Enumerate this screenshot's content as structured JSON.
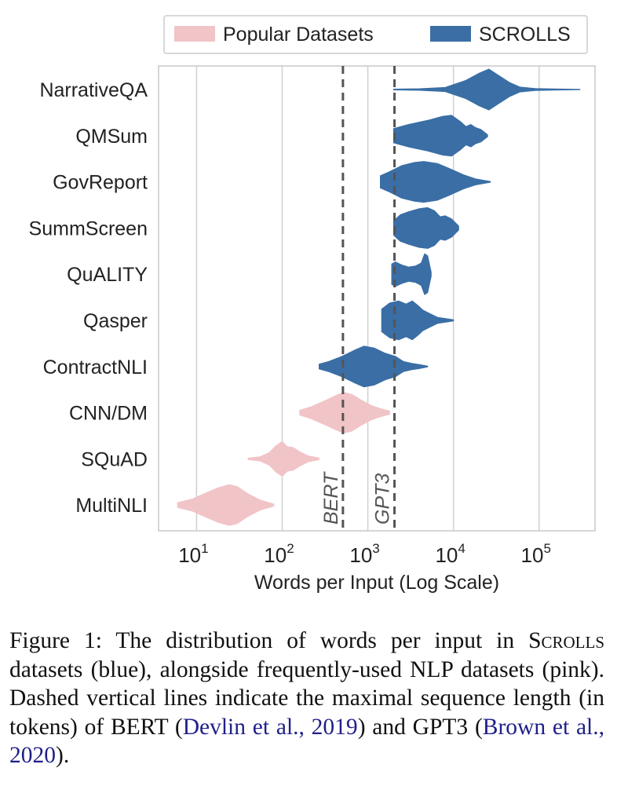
{
  "chart_data": {
    "type": "violin",
    "title": "",
    "xlabel": "Words per Input (Log Scale)",
    "ylabel": "",
    "x_scale": "log",
    "xlim": [
      3.6,
      450000
    ],
    "x_ticks": [
      {
        "value": 10,
        "base": "10",
        "exp": "1"
      },
      {
        "value": 100,
        "base": "10",
        "exp": "2"
      },
      {
        "value": 1000,
        "base": "10",
        "exp": "3"
      },
      {
        "value": 10000,
        "base": "10",
        "exp": "4"
      },
      {
        "value": 100000,
        "base": "10",
        "exp": "5"
      }
    ],
    "grid": "vertical",
    "legend_position": "top",
    "legend": [
      {
        "label": "Popular Datasets",
        "color": "#f1c4c7"
      },
      {
        "label": "SCROLLS",
        "color": "#3a6ea5"
      }
    ],
    "reference_lines": [
      {
        "label": "BERT",
        "x": 512
      },
      {
        "label": "GPT3",
        "x": 2048
      }
    ],
    "series": [
      {
        "name": "NarrativeQA",
        "group": "SCROLLS",
        "color": "#3a6ea5",
        "min": 2000,
        "max": 300000,
        "profile": [
          [
            2000,
            0.02
          ],
          [
            4000,
            0.04
          ],
          [
            8000,
            0.1
          ],
          [
            14000,
            0.45
          ],
          [
            20000,
            0.8
          ],
          [
            26000,
            1.0
          ],
          [
            32000,
            0.75
          ],
          [
            45000,
            0.35
          ],
          [
            60000,
            0.12
          ],
          [
            90000,
            0.05
          ],
          [
            150000,
            0.03
          ],
          [
            300000,
            0.01
          ]
        ]
      },
      {
        "name": "QMSum",
        "group": "SCROLLS",
        "color": "#3a6ea5",
        "min": 2000,
        "max": 25000,
        "profile": [
          [
            2000,
            0.35
          ],
          [
            3000,
            0.55
          ],
          [
            5000,
            0.75
          ],
          [
            7500,
            0.95
          ],
          [
            9500,
            1.0
          ],
          [
            12000,
            0.7
          ],
          [
            14000,
            0.45
          ],
          [
            16000,
            0.55
          ],
          [
            18000,
            0.4
          ],
          [
            21000,
            0.3
          ],
          [
            25000,
            0.05
          ]
        ]
      },
      {
        "name": "GovReport",
        "group": "SCROLLS",
        "color": "#3a6ea5",
        "min": 1400,
        "max": 27000,
        "profile": [
          [
            1400,
            0.3
          ],
          [
            1800,
            0.5
          ],
          [
            2500,
            0.8
          ],
          [
            3500,
            0.95
          ],
          [
            4500,
            1.0
          ],
          [
            6500,
            0.9
          ],
          [
            9000,
            0.65
          ],
          [
            13000,
            0.35
          ],
          [
            18000,
            0.15
          ],
          [
            27000,
            0.02
          ]
        ]
      },
      {
        "name": "SummScreen",
        "group": "SCROLLS",
        "color": "#3a6ea5",
        "min": 2000,
        "max": 11500,
        "profile": [
          [
            2000,
            0.35
          ],
          [
            2400,
            0.65
          ],
          [
            3000,
            0.8
          ],
          [
            4000,
            0.95
          ],
          [
            5000,
            1.0
          ],
          [
            6000,
            0.85
          ],
          [
            7000,
            0.55
          ],
          [
            8000,
            0.6
          ],
          [
            9500,
            0.45
          ],
          [
            11500,
            0.1
          ]
        ]
      },
      {
        "name": "QuALITY",
        "group": "SCROLLS",
        "color": "#3a6ea5",
        "min": 1900,
        "max": 5500,
        "profile": [
          [
            1900,
            0.5
          ],
          [
            2100,
            0.6
          ],
          [
            2500,
            0.45
          ],
          [
            3000,
            0.35
          ],
          [
            3600,
            0.4
          ],
          [
            4200,
            0.55
          ],
          [
            4600,
            1.0
          ],
          [
            5000,
            0.9
          ],
          [
            5500,
            0.1
          ]
        ]
      },
      {
        "name": "Qasper",
        "group": "SCROLLS",
        "color": "#3a6ea5",
        "min": 1450,
        "max": 10000,
        "profile": [
          [
            1450,
            0.55
          ],
          [
            1800,
            0.85
          ],
          [
            2300,
            0.95
          ],
          [
            2800,
            0.8
          ],
          [
            3300,
            0.95
          ],
          [
            3800,
            0.75
          ],
          [
            4400,
            0.5
          ],
          [
            5200,
            0.35
          ],
          [
            6500,
            0.15
          ],
          [
            10000,
            0.03
          ]
        ]
      },
      {
        "name": "ContractNLI",
        "group": "SCROLLS",
        "color": "#3a6ea5",
        "min": 270,
        "max": 5000,
        "profile": [
          [
            270,
            0.12
          ],
          [
            350,
            0.25
          ],
          [
            500,
            0.5
          ],
          [
            700,
            0.8
          ],
          [
            900,
            1.0
          ],
          [
            1200,
            0.9
          ],
          [
            1600,
            0.65
          ],
          [
            2100,
            0.5
          ],
          [
            2600,
            0.25
          ],
          [
            3300,
            0.15
          ],
          [
            4000,
            0.1
          ],
          [
            5000,
            0.02
          ]
        ]
      },
      {
        "name": "CNN/DM",
        "group": "Popular Datasets",
        "color": "#f1c4c7",
        "min": 160,
        "max": 1800,
        "profile": [
          [
            160,
            0.12
          ],
          [
            220,
            0.3
          ],
          [
            320,
            0.6
          ],
          [
            430,
            0.85
          ],
          [
            520,
            1.0
          ],
          [
            650,
            0.9
          ],
          [
            850,
            0.6
          ],
          [
            1100,
            0.35
          ],
          [
            1400,
            0.2
          ],
          [
            1800,
            0.08
          ]
        ]
      },
      {
        "name": "SQuAD",
        "group": "Popular Datasets",
        "color": "#f1c4c7",
        "min": 40,
        "max": 270,
        "profile": [
          [
            40,
            0.04
          ],
          [
            55,
            0.1
          ],
          [
            70,
            0.3
          ],
          [
            85,
            0.65
          ],
          [
            100,
            0.85
          ],
          [
            115,
            0.6
          ],
          [
            135,
            0.55
          ],
          [
            160,
            0.35
          ],
          [
            200,
            0.15
          ],
          [
            270,
            0.04
          ]
        ]
      },
      {
        "name": "MultiNLI",
        "group": "Popular Datasets",
        "color": "#f1c4c7",
        "min": 6,
        "max": 80,
        "profile": [
          [
            6,
            0.12
          ],
          [
            9,
            0.3
          ],
          [
            13,
            0.6
          ],
          [
            18,
            0.85
          ],
          [
            24,
            1.0
          ],
          [
            30,
            0.9
          ],
          [
            40,
            0.55
          ],
          [
            55,
            0.25
          ],
          [
            80,
            0.05
          ]
        ]
      }
    ]
  },
  "caption": {
    "lead": "Figure 1:  The distribution of words per input in ",
    "scrolls": "Scrolls",
    "middle": " datasets (blue), alongside frequently-used NLP datasets (pink). Dashed vertical lines indicate the maximal sequence length (in tokens) of BERT (",
    "cite1": "Devlin et al., 2019",
    "and": ") and GPT3 (",
    "cite2": "Brown et al., 2020",
    "end": ")."
  }
}
